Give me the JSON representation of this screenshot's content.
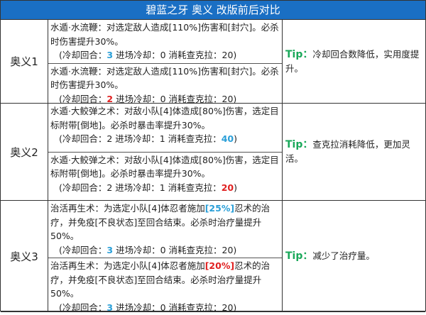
{
  "title": "碧蓝之牙 奥义 改版前后对比",
  "colors": {
    "header": "#1a6fc4",
    "tip": "#1aa85a",
    "blue": "#2a9fd8",
    "red": "#e02020"
  },
  "rows": [
    {
      "name": "奥义1",
      "tip_label": "Tip",
      "tip_sep": "：",
      "tip": "冷却回合数降低，实用度提升。",
      "versions": [
        {
          "desc": [
            {
              "t": "水遁·水流鞭：对选定敌人造成[110%]伤害和[封穴]。必杀时伤害提升30%。"
            }
          ],
          "cd": [
            {
              "t": "(冷却回合："
            },
            {
              "t": "3",
              "c": "blue"
            },
            {
              "t": " 进场冷却：0  消耗查克拉：20)"
            }
          ]
        },
        {
          "desc": [
            {
              "t": "水遁·水流鞭：对选定敌人造成[110%]伤害和[封穴]。必杀时伤害提升30%。"
            }
          ],
          "cd": [
            {
              "t": "(冷却回合："
            },
            {
              "t": "2",
              "c": "red"
            },
            {
              "t": " 进场冷却：0  消耗查克拉：20)"
            }
          ]
        }
      ]
    },
    {
      "name": "奥义2",
      "tip_label": "Tip",
      "tip_sep": "：",
      "tip": "查克拉消耗降低，更加灵活。",
      "versions": [
        {
          "desc": [
            {
              "t": "水遁·大鲛弹之术：对敌小队[4]体造成[80%]伤害，选定目标附带[倒地]。必杀时暴击率提升30%。"
            }
          ],
          "cd": [
            {
              "t": "(冷却回合：2  进场冷却：1  消耗查克拉："
            },
            {
              "t": "40",
              "c": "blue"
            },
            {
              "t": ")"
            }
          ]
        },
        {
          "desc": [
            {
              "t": "水遁·大鲛弹之术：对敌小队[4]体造成[80%]伤害，选定目标附带[倒地]。必杀时暴击率提升30%。"
            }
          ],
          "cd": [
            {
              "t": "(冷却回合：2  进场冷却：1  消耗查克拉："
            },
            {
              "t": "20",
              "c": "red"
            },
            {
              "t": ")"
            }
          ]
        }
      ]
    },
    {
      "name": "奥义3",
      "tip_label": "Tip",
      "tip_sep": "：",
      "tip": "减少了治疗量。",
      "versions": [
        {
          "desc": [
            {
              "t": "治活再生术：为选定小队[4]体忍者施加"
            },
            {
              "t": "[25%]",
              "c": "blue"
            },
            {
              "t": "忍术的治疗，并免疫[不良状态]至回合结束。必杀时治疗量提升50%。"
            }
          ],
          "cd": [
            {
              "t": "(冷却回合："
            },
            {
              "t": "3",
              "c": "blue"
            },
            {
              "t": " 进场冷却：0  消耗查克拉：20)"
            }
          ]
        },
        {
          "desc": [
            {
              "t": "治活再生术：为选定小队[4]体忍者施加"
            },
            {
              "t": "[20%]",
              "c": "red"
            },
            {
              "t": "忍术的治疗，并免疫[不良状态]至回合结束。必杀时治疗量提升50%。"
            }
          ],
          "cd": [
            {
              "t": "(冷却回合："
            },
            {
              "t": "3",
              "c": "blue"
            },
            {
              "t": " 进场冷却：0  消耗查克拉：20)"
            }
          ]
        }
      ]
    }
  ]
}
